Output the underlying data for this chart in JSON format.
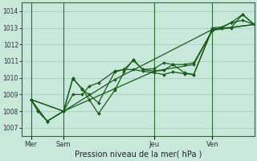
{
  "background_color": "#c8e8dc",
  "grid_color": "#a0ccbc",
  "line_color": "#1a5c1a",
  "marker_color": "#1a5c1a",
  "xlabel": "Pression niveau de la mer( hPa )",
  "ylim": [
    1006.5,
    1014.5
  ],
  "yticks": [
    1007,
    1008,
    1009,
    1010,
    1011,
    1012,
    1013,
    1014
  ],
  "xlim": [
    0,
    1.0
  ],
  "xtick_positions": [
    0.04,
    0.18,
    0.57,
    0.82
  ],
  "xtick_labels": [
    "Mer",
    "Sam",
    "Jeu",
    "Ven"
  ],
  "vline_positions": [
    0.04,
    0.18,
    0.57,
    0.82
  ],
  "series": [
    {
      "x": [
        0.04,
        0.07,
        0.11,
        0.18,
        0.22,
        0.26,
        0.29,
        0.33,
        0.4,
        0.44,
        0.48,
        0.52,
        0.57,
        0.61,
        0.65,
        0.7,
        0.74,
        0.82,
        0.86,
        0.9,
        0.95,
        1.0
      ],
      "y": [
        1008.7,
        1008.0,
        1007.4,
        1008.0,
        1010.0,
        1009.3,
        1009.0,
        1008.5,
        1010.35,
        1010.5,
        1011.05,
        1010.5,
        1010.4,
        1010.45,
        1010.8,
        1010.3,
        1010.2,
        1012.9,
        1013.0,
        1013.3,
        1013.8,
        1013.2
      ]
    },
    {
      "x": [
        0.04,
        0.07,
        0.11,
        0.18,
        0.22,
        0.26,
        0.29,
        0.33,
        0.4,
        0.44,
        0.48,
        0.52,
        0.57,
        0.61,
        0.65,
        0.7,
        0.74,
        0.82,
        0.86,
        0.9,
        0.95,
        1.0
      ],
      "y": [
        1008.7,
        1008.0,
        1007.4,
        1008.0,
        1009.0,
        1009.0,
        1009.5,
        1009.7,
        1010.4,
        1010.5,
        1010.5,
        1010.4,
        1010.3,
        1010.2,
        1010.35,
        1010.25,
        1010.2,
        1013.0,
        1013.05,
        1013.3,
        1013.45,
        1013.2
      ]
    },
    {
      "x": [
        0.04,
        0.11,
        0.18,
        0.22,
        0.26,
        0.29,
        0.33,
        0.4,
        0.44,
        0.48,
        0.52,
        0.57,
        0.61,
        0.65,
        0.7,
        0.74,
        0.82,
        0.86,
        0.9,
        0.95,
        1.0
      ],
      "y": [
        1008.7,
        1007.4,
        1008.0,
        1009.95,
        1009.35,
        1008.7,
        1007.85,
        1009.25,
        1010.35,
        1011.1,
        1010.5,
        1010.55,
        1010.9,
        1010.8,
        1010.8,
        1010.9,
        1012.85,
        1013.0,
        1013.0,
        1013.8,
        1013.2
      ]
    },
    {
      "x": [
        0.04,
        0.18,
        0.4,
        0.82,
        1.0
      ],
      "y": [
        1008.7,
        1008.0,
        1009.9,
        1012.9,
        1013.2
      ]
    },
    {
      "x": [
        0.04,
        0.18,
        0.4,
        0.57,
        0.74,
        0.82,
        1.0
      ],
      "y": [
        1008.7,
        1008.0,
        1009.35,
        1010.4,
        1010.8,
        1012.85,
        1013.2
      ]
    }
  ]
}
